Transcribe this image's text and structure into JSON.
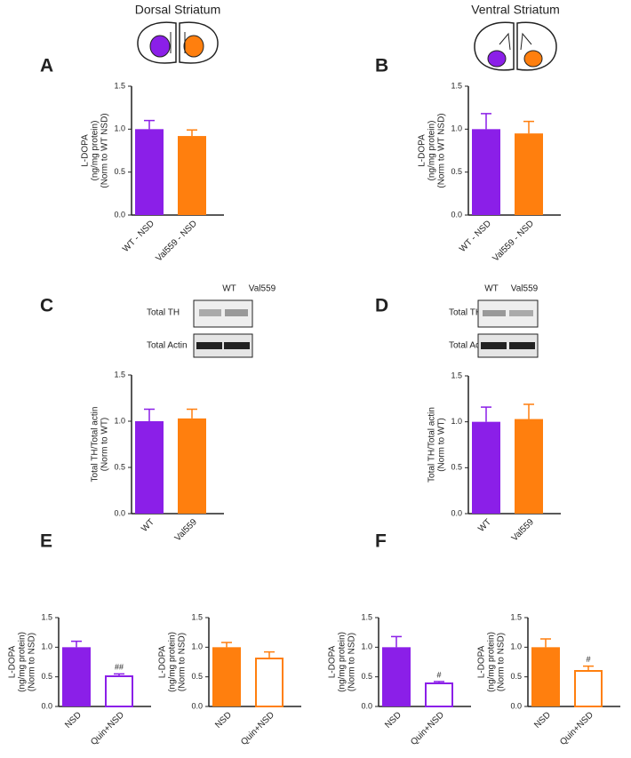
{
  "headers": [
    "Dorsal Striatum",
    "Ventral Striatum"
  ],
  "blots": [
    {
      "lanes": [
        "WT",
        "Val559"
      ],
      "rows": [
        "Total TH",
        "Total Actin"
      ]
    },
    {
      "lanes": [
        "WT",
        "Val559"
      ],
      "rows": [
        "Total TH",
        "Total Actin"
      ]
    }
  ],
  "chart_data": [
    {
      "type": "bar",
      "panel": "A",
      "categories": [
        "WT - NSD",
        "Val559 - NSD"
      ],
      "values": [
        1.0,
        0.92
      ],
      "errors": [
        0.1,
        0.07
      ],
      "colors": [
        "#8b1fe8",
        "#ff7f0e"
      ],
      "hollow": [
        false,
        false
      ],
      "markers": [
        null,
        null
      ],
      "ylabel": [
        "L-DOPA",
        "(ng/mg protein)",
        "(Norm to WT NSD)"
      ],
      "ylim": [
        0,
        1.5
      ],
      "yticks": [
        {
          "value": 0,
          "label": "0.0"
        },
        {
          "value": 0.5,
          "label": "0.5"
        },
        {
          "value": 1,
          "label": "1.0"
        },
        {
          "value": 1.5,
          "label": "1.5"
        }
      ]
    },
    {
      "type": "bar",
      "panel": "B",
      "categories": [
        "WT - NSD",
        "Val559 - NSD"
      ],
      "values": [
        1.0,
        0.95
      ],
      "errors": [
        0.18,
        0.14
      ],
      "colors": [
        "#8b1fe8",
        "#ff7f0e"
      ],
      "hollow": [
        false,
        false
      ],
      "markers": [
        null,
        null
      ],
      "ylabel": [
        "L-DOPA",
        "(ng/mg protein)",
        "(Norm to WT NSD)"
      ],
      "ylim": [
        0,
        1.5
      ],
      "yticks": [
        {
          "value": 0,
          "label": "0.0"
        },
        {
          "value": 0.5,
          "label": "0.5"
        },
        {
          "value": 1,
          "label": "1.0"
        },
        {
          "value": 1.5,
          "label": "1.5"
        }
      ]
    },
    {
      "type": "bar",
      "panel": "C",
      "categories": [
        "WT",
        "Val559"
      ],
      "values": [
        1.0,
        1.03
      ],
      "errors": [
        0.13,
        0.1
      ],
      "colors": [
        "#8b1fe8",
        "#ff7f0e"
      ],
      "hollow": [
        false,
        false
      ],
      "markers": [
        null,
        null
      ],
      "ylabel": [
        "Total TH/Total actin",
        "(Norm to WT)"
      ],
      "ylim": [
        0,
        1.5
      ],
      "yticks": [
        {
          "value": 0,
          "label": "0.0"
        },
        {
          "value": 0.5,
          "label": "0.5"
        },
        {
          "value": 1,
          "label": "1.0"
        },
        {
          "value": 1.5,
          "label": "1.5"
        }
      ]
    },
    {
      "type": "bar",
      "panel": "D",
      "categories": [
        "WT",
        "Val559"
      ],
      "values": [
        1.0,
        1.03
      ],
      "errors": [
        0.16,
        0.16
      ],
      "colors": [
        "#8b1fe8",
        "#ff7f0e"
      ],
      "hollow": [
        false,
        false
      ],
      "markers": [
        null,
        null
      ],
      "ylabel": [
        "Total TH/Total actin",
        "(Norm to WT)"
      ],
      "ylim": [
        0,
        1.5
      ],
      "yticks": [
        {
          "value": 0,
          "label": "0.0"
        },
        {
          "value": 0.5,
          "label": "0.5"
        },
        {
          "value": 1,
          "label": "1.0"
        },
        {
          "value": 1.5,
          "label": "1.5"
        }
      ]
    },
    {
      "type": "bar",
      "panel": "E",
      "categories": [
        "NSD",
        "Quin+NSD"
      ],
      "values": [
        1.0,
        0.51
      ],
      "errors": [
        0.1,
        0.04
      ],
      "colors": [
        "#8b1fe8",
        "#8b1fe8"
      ],
      "hollow": [
        false,
        true
      ],
      "markers": [
        null,
        "##"
      ],
      "ylabel": [
        "L-DOPA",
        "(ng/mg protein)",
        "(Norm to NSD)"
      ],
      "ylim": [
        0,
        1.5
      ],
      "yticks": [
        {
          "value": 0,
          "label": "0.0"
        },
        {
          "value": 0.5,
          "label": "0.5"
        },
        {
          "value": 1,
          "label": "1.0"
        },
        {
          "value": 1.5,
          "label": "1.5"
        }
      ]
    },
    {
      "type": "bar",
      "categories": [
        "NSD",
        "Quin+NSD"
      ],
      "values": [
        1.0,
        0.81
      ],
      "errors": [
        0.08,
        0.11
      ],
      "colors": [
        "#ff7f0e",
        "#ff7f0e"
      ],
      "hollow": [
        false,
        true
      ],
      "markers": [
        null,
        null
      ],
      "ylabel": [
        "L-DOPA",
        "(ng/mg protein)",
        "(Norm to NSD)"
      ],
      "ylim": [
        0,
        1.5
      ],
      "yticks": [
        {
          "value": 0,
          "label": "0.0"
        },
        {
          "value": 0.5,
          "label": "0.5"
        },
        {
          "value": 1,
          "label": "1.0"
        },
        {
          "value": 1.5,
          "label": "1.5"
        }
      ]
    },
    {
      "type": "bar",
      "panel": "F",
      "categories": [
        "NSD",
        "Quin+NSD"
      ],
      "values": [
        1.0,
        0.39
      ],
      "errors": [
        0.18,
        0.03
      ],
      "colors": [
        "#8b1fe8",
        "#8b1fe8"
      ],
      "hollow": [
        false,
        true
      ],
      "markers": [
        null,
        "#"
      ],
      "ylabel": [
        "L-DOPA",
        "(ng/mg protein)",
        "(Norm to NSD)"
      ],
      "ylim": [
        0,
        1.5
      ],
      "yticks": [
        {
          "value": 0,
          "label": "0.0"
        },
        {
          "value": 0.5,
          "label": "0.5"
        },
        {
          "value": 1,
          "label": "1.0"
        },
        {
          "value": 1.5,
          "label": "1.5"
        }
      ]
    },
    {
      "type": "bar",
      "categories": [
        "NSD",
        "Quin+NSD"
      ],
      "values": [
        1.0,
        0.6
      ],
      "errors": [
        0.14,
        0.08
      ],
      "colors": [
        "#ff7f0e",
        "#ff7f0e"
      ],
      "hollow": [
        false,
        true
      ],
      "markers": [
        null,
        "#"
      ],
      "ylabel": [
        "L-DOPA",
        "(ng/mg protein)",
        "(Norm to NSD)"
      ],
      "ylim": [
        0,
        1.5
      ],
      "yticks": [
        {
          "value": 0,
          "label": "0.0"
        },
        {
          "value": 0.5,
          "label": "0.5"
        },
        {
          "value": 1,
          "label": "1.0"
        },
        {
          "value": 1.5,
          "label": "1.5"
        }
      ]
    }
  ]
}
